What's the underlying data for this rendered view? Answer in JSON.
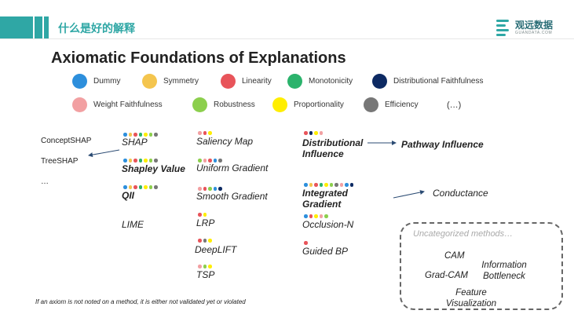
{
  "header": {
    "section_title": "什么是好的解释",
    "brand_name": "观远数据",
    "brand_sub": "GUANDATA.COM",
    "accent_color": "#2fa7a5"
  },
  "title": "Axiomatic Foundations of Explanations",
  "axioms": [
    {
      "label": "Dummy",
      "color": "#2d8fdc"
    },
    {
      "label": "Symmetry",
      "color": "#f4c54e"
    },
    {
      "label": "Linearity",
      "color": "#e8545a"
    },
    {
      "label": "Monotonicity",
      "color": "#2bb36c"
    },
    {
      "label": "Distributional Faithfulness",
      "color": "#0d2a63"
    },
    {
      "label": "Weight Faithfulness",
      "color": "#f2a0a2"
    },
    {
      "label": "Robustness",
      "color": "#8ccf4d"
    },
    {
      "label": "Proportionality",
      "color": "#ffee00"
    },
    {
      "label": "Efficiency",
      "color": "#777777"
    }
  ],
  "axioms_more": "(…)",
  "methods": {
    "shap": {
      "label": "SHAP",
      "axioms": [
        "Dummy",
        "Symmetry",
        "Linearity",
        "Monotonicity",
        "Proportionality",
        "Robustness",
        "Efficiency"
      ]
    },
    "shapley": {
      "label": "Shapley Value",
      "axioms": [
        "Dummy",
        "Symmetry",
        "Linearity",
        "Monotonicity",
        "Proportionality",
        "Robustness",
        "Efficiency"
      ]
    },
    "qii": {
      "label": "QII",
      "axioms": [
        "Dummy",
        "Symmetry",
        "Linearity",
        "Monotonicity",
        "Proportionality",
        "Robustness",
        "Efficiency"
      ]
    },
    "lime": {
      "label": "LIME",
      "axioms": []
    },
    "saliency": {
      "label": "Saliency Map",
      "axioms": [
        "Weight Faithfulness",
        "Linearity",
        "Proportionality"
      ]
    },
    "uniform": {
      "label": "Uniform Gradient",
      "axioms": [
        "Robustness",
        "Weight Faithfulness",
        "Linearity",
        "Dummy",
        "Efficiency"
      ]
    },
    "smooth": {
      "label": "Smooth Gradient",
      "axioms": [
        "Weight Faithfulness",
        "Linearity",
        "Robustness",
        "Dummy",
        "Distributional Faithfulness"
      ]
    },
    "lrp": {
      "label": "LRP",
      "axioms": [
        "Linearity",
        "Proportionality"
      ]
    },
    "deeplift": {
      "label": "DeepLIFT",
      "axioms": [
        "Linearity",
        "Efficiency",
        "Proportionality"
      ]
    },
    "tsp": {
      "label": "TSP",
      "axioms": [
        "Weight Faithfulness",
        "Robustness",
        "Proportionality"
      ]
    },
    "distributional": {
      "label": "Distributional Influence",
      "axioms": [
        "Linearity",
        "Distributional Faithfulness",
        "Proportionality",
        "Weight Faithfulness"
      ]
    },
    "integrated": {
      "label": "Integrated Gradient",
      "axioms": [
        "Dummy",
        "Symmetry",
        "Linearity",
        "Monotonicity",
        "Proportionality",
        "Robustness",
        "Efficiency",
        "Weight Faithfulness",
        "Dummy",
        "Distributional Faithfulness"
      ]
    },
    "occlusion": {
      "label": "Occlusion-N",
      "axioms": [
        "Dummy",
        "Linearity",
        "Proportionality",
        "Weight Faithfulness",
        "Robustness"
      ]
    },
    "guided": {
      "label": "Guided BP",
      "axioms": [
        "Linearity"
      ]
    },
    "pathway": {
      "label": "Pathway Influence"
    },
    "conductance": {
      "label": "Conductance"
    }
  },
  "shap_variants": [
    "ConceptSHAP",
    "TreeSHAP",
    "…"
  ],
  "uncategorized": {
    "title": "Uncategorized methods…",
    "cam": "CAM",
    "gradcam": "Grad-CAM",
    "info_bottleneck": "Information Bottleneck",
    "feature_viz": "Feature Visualization"
  },
  "footnote": "If an axiom is not noted on a method, it is either not validated yet or violated"
}
